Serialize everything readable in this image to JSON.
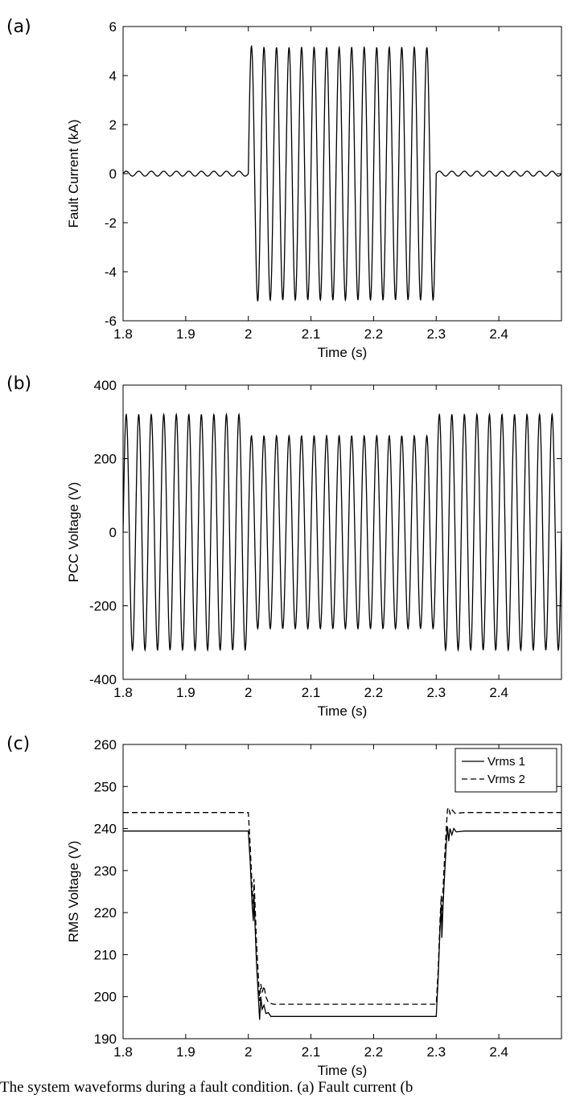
{
  "caption": "The system waveforms during a fault condition. (a) Fault current (b",
  "chart_data": [
    {
      "type": "line",
      "panel_label": "(a)",
      "xlabel": "Time (s)",
      "ylabel": "Fault Current (kA)",
      "xlim": [
        1.8,
        2.5
      ],
      "ylim": [
        -6,
        6
      ],
      "xticks": [
        "1.8",
        "1.9",
        "2",
        "2.1",
        "2.2",
        "2.3",
        "2.4"
      ],
      "yticks": [
        "-6",
        "-4",
        "-2",
        "0",
        "2",
        "4",
        "6"
      ],
      "grid": false,
      "series": [
        {
          "segments": [
            {
              "t_start": 1.8,
              "t_end": 2.0,
              "waveform": "sine",
              "frequency_hz": 50,
              "amplitude": 0.1
            },
            {
              "t_start": 2.0,
              "t_end": 2.3,
              "waveform": "sine",
              "frequency_hz": 50,
              "amplitude": 5.15,
              "first_peak": 5.2
            },
            {
              "t_start": 2.3,
              "t_end": 2.5,
              "waveform": "sine",
              "frequency_hz": 50,
              "amplitude": 0.1
            }
          ],
          "color": "#000000",
          "style": "solid"
        }
      ]
    },
    {
      "type": "line",
      "panel_label": "(b)",
      "xlabel": "Time (s)",
      "ylabel": "PCC Voltage (V)",
      "xlim": [
        1.8,
        2.5
      ],
      "ylim": [
        -400,
        400
      ],
      "xticks": [
        "1.8",
        "1.9",
        "2",
        "2.1",
        "2.2",
        "2.3",
        "2.4"
      ],
      "yticks": [
        "-400",
        "-200",
        "0",
        "200",
        "400"
      ],
      "grid": false,
      "series": [
        {
          "segments": [
            {
              "t_start": 1.8,
              "t_end": 2.0,
              "waveform": "sine",
              "frequency_hz": 50,
              "amplitude": 320
            },
            {
              "t_start": 2.0,
              "t_end": 2.3,
              "waveform": "sine",
              "frequency_hz": 50,
              "amplitude": 262
            },
            {
              "t_start": 2.3,
              "t_end": 2.5,
              "waveform": "sine",
              "frequency_hz": 50,
              "amplitude": 320
            }
          ],
          "color": "#000000",
          "style": "solid"
        }
      ]
    },
    {
      "type": "line",
      "panel_label": "(c)",
      "xlabel": "Time (s)",
      "ylabel": "RMS Voltage (V)",
      "xlim": [
        1.8,
        2.5
      ],
      "ylim": [
        190,
        260
      ],
      "xticks": [
        "1.8",
        "1.9",
        "2",
        "2.1",
        "2.2",
        "2.3",
        "2.4"
      ],
      "yticks": [
        "190",
        "200",
        "210",
        "220",
        "230",
        "240",
        "250",
        "260"
      ],
      "grid": false,
      "legend": "top-right",
      "series": [
        {
          "name": "Vrms 1",
          "style": "solid",
          "color": "#000000",
          "points": [
            [
              1.8,
              239.4
            ],
            [
              2.0,
              239.4
            ],
            [
              2.003,
              232
            ],
            [
              2.006,
              222
            ],
            [
              2.008,
              218
            ],
            [
              2.009,
              224
            ],
            [
              2.011,
              216
            ],
            [
              2.013,
              208
            ],
            [
              2.016,
              200
            ],
            [
              2.018,
              194.5
            ],
            [
              2.02,
              200
            ],
            [
              2.022,
              197
            ],
            [
              2.025,
              198
            ],
            [
              2.028,
              196
            ],
            [
              2.032,
              196.2
            ],
            [
              2.036,
              195.3
            ],
            [
              2.045,
              195.3
            ],
            [
              2.3,
              195.3
            ],
            [
              2.303,
              204
            ],
            [
              2.306,
              216
            ],
            [
              2.308,
              222
            ],
            [
              2.309,
              214
            ],
            [
              2.311,
              222
            ],
            [
              2.313,
              228
            ],
            [
              2.316,
              236
            ],
            [
              2.318,
              240.5
            ],
            [
              2.32,
              237
            ],
            [
              2.322,
              240
            ],
            [
              2.325,
              238.5
            ],
            [
              2.328,
              240
            ],
            [
              2.332,
              239.2
            ],
            [
              2.345,
              239.4
            ],
            [
              2.5,
              239.4
            ]
          ]
        },
        {
          "name": "Vrms 2",
          "style": "dashed",
          "color": "#000000",
          "points": [
            [
              1.8,
              243.8
            ],
            [
              2.0,
              243.8
            ],
            [
              2.003,
              236
            ],
            [
              2.006,
              226
            ],
            [
              2.008,
              222
            ],
            [
              2.009,
              228
            ],
            [
              2.011,
              221
            ],
            [
              2.013,
              213
            ],
            [
              2.016,
              205
            ],
            [
              2.018,
              199
            ],
            [
              2.02,
              203
            ],
            [
              2.022,
              201
            ],
            [
              2.025,
              202.5
            ],
            [
              2.028,
              200
            ],
            [
              2.032,
              198.6
            ],
            [
              2.04,
              198.2
            ],
            [
              2.3,
              198.2
            ],
            [
              2.303,
              206
            ],
            [
              2.306,
              218
            ],
            [
              2.308,
              224
            ],
            [
              2.309,
              218
            ],
            [
              2.311,
              226
            ],
            [
              2.313,
              232
            ],
            [
              2.316,
              240
            ],
            [
              2.318,
              244.5
            ],
            [
              2.32,
              245
            ],
            [
              2.322,
              243.5
            ],
            [
              2.325,
              244.5
            ],
            [
              2.33,
              243.6
            ],
            [
              2.345,
              243.8
            ],
            [
              2.5,
              243.8
            ]
          ]
        }
      ]
    }
  ]
}
